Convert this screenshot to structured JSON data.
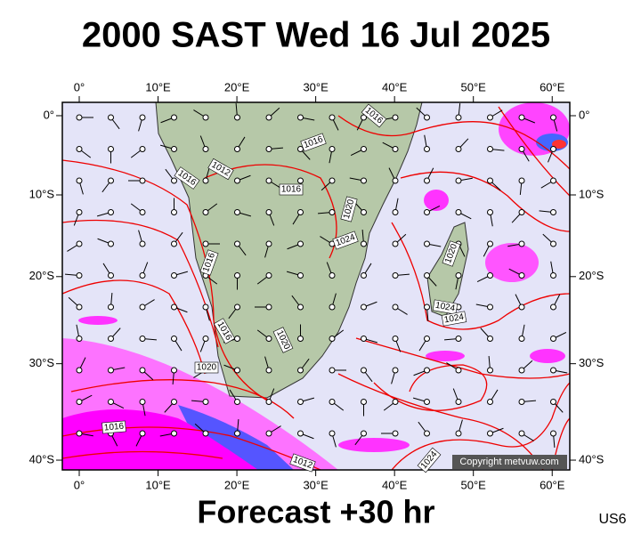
{
  "title": "2000 SAST Wed 16 Jul 2025",
  "lon_ticks": [
    {
      "value": 0,
      "label": "0°"
    },
    {
      "value": 10,
      "label": "10°E"
    },
    {
      "value": 20,
      "label": "20°E"
    },
    {
      "value": 30,
      "label": "30°E"
    },
    {
      "value": 40,
      "label": "40°E"
    },
    {
      "value": 50,
      "label": "50°E"
    },
    {
      "value": 60,
      "label": "60°E"
    }
  ],
  "lat_ticks": [
    {
      "value": 0,
      "label": "0°"
    },
    {
      "value": -10,
      "label": "10°S"
    },
    {
      "value": -20,
      "label": "20°S"
    },
    {
      "value": -30,
      "label": "30°S"
    },
    {
      "value": -40,
      "label": "40°S"
    }
  ],
  "isobar_labels": [
    1016,
    1016,
    1012,
    1016,
    1016,
    1020,
    1024,
    1016,
    1016,
    1020,
    1020,
    1024,
    1024,
    1020,
    1016,
    1012,
    1024
  ],
  "copyright": "Copyright metvuw.com",
  "forecast": "Forecast +30 hr",
  "model": "US6"
}
